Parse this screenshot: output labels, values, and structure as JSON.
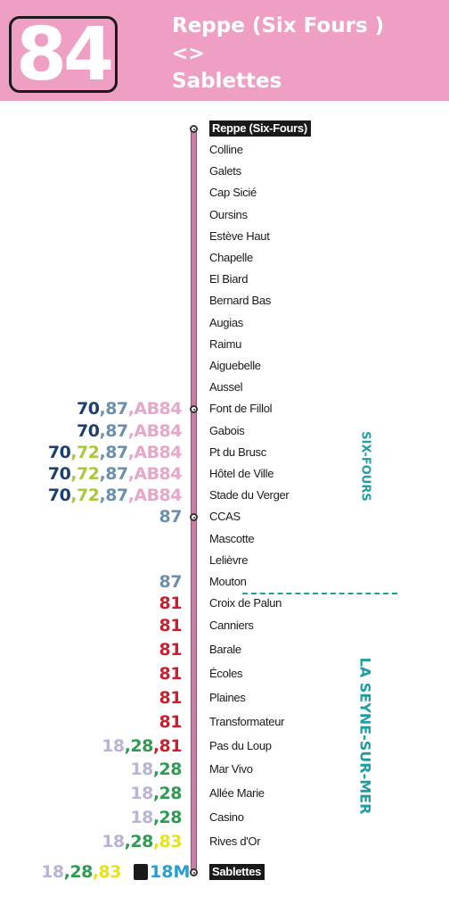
{
  "header": {
    "route_number": "84",
    "from": "Reppe (Six Fours )",
    "separator": "<>",
    "to": "Sablettes",
    "background": "#ef9fc3"
  },
  "line_color": "#c77fa2",
  "line_colors": {
    "70": "#1c3f6e",
    "72": "#a8c83a",
    "87": "#6d8fae",
    "AB84": "#e6a7c9",
    "81": "#c8202f",
    "18": "#b7b4d6",
    "28": "#2f9b52",
    "83": "#e8e21c",
    "18M": "#2a9dd0"
  },
  "communes": [
    "SIX-FOURS",
    "LA SEYNE-SUR-MER"
  ],
  "ferry": {
    "icon": "ferry-icon",
    "label": "18M"
  },
  "stops": [
    {
      "name": "Reppe (Six-Fours)",
      "terminus": true,
      "dot": true,
      "connections": []
    },
    {
      "name": "Colline",
      "connections": []
    },
    {
      "name": "Galets",
      "connections": []
    },
    {
      "name": "Cap Sicié",
      "connections": []
    },
    {
      "name": "Oursins",
      "connections": []
    },
    {
      "name": "Estève Haut",
      "connections": []
    },
    {
      "name": "Chapelle",
      "connections": []
    },
    {
      "name": "El Biard",
      "connections": []
    },
    {
      "name": "Bernard Bas",
      "connections": []
    },
    {
      "name": "Augias",
      "connections": []
    },
    {
      "name": "Raimu",
      "connections": []
    },
    {
      "name": "Aiguebelle",
      "connections": []
    },
    {
      "name": "Aussel",
      "connections": []
    },
    {
      "name": "Font de Fillol",
      "dot": true,
      "connections": [
        "70",
        "87",
        "AB84"
      ]
    },
    {
      "name": "Gabois",
      "connections": [
        "70",
        "87",
        "AB84"
      ]
    },
    {
      "name": "Pt du Brusc",
      "connections": [
        "70",
        "72",
        "87",
        "AB84"
      ]
    },
    {
      "name": "Hôtel de Ville",
      "connections": [
        "70",
        "72",
        "87",
        "AB84"
      ]
    },
    {
      "name": "Stade du Verger",
      "connections": [
        "70",
        "72",
        "87",
        "AB84"
      ]
    },
    {
      "name": "CCAS",
      "dot": true,
      "connections": [
        "87"
      ]
    },
    {
      "name": "Mascotte",
      "connections": []
    },
    {
      "name": "Lelièvre",
      "connections": []
    },
    {
      "name": "Mouton",
      "connections": [
        "87"
      ]
    },
    {
      "name": "Croix de Palun",
      "connections": [
        "81"
      ]
    },
    {
      "name": "Canniers",
      "connections": [
        "81"
      ]
    },
    {
      "name": "Barale",
      "connections": [
        "81"
      ]
    },
    {
      "name": "Écoles",
      "connections": [
        "81"
      ]
    },
    {
      "name": "Plaines",
      "connections": [
        "81"
      ]
    },
    {
      "name": "Transformateur",
      "connections": [
        "81"
      ]
    },
    {
      "name": "Pas du Loup",
      "connections": [
        "18",
        "28",
        "81"
      ]
    },
    {
      "name": "Mar Vivo",
      "connections": [
        "18",
        "28"
      ]
    },
    {
      "name": "Allée Marie",
      "connections": [
        "18",
        "28"
      ]
    },
    {
      "name": "Casino",
      "connections": [
        "18",
        "28"
      ]
    },
    {
      "name": "Rives d'Or",
      "connections": [
        "18",
        "28",
        "83"
      ]
    },
    {
      "name": "Sablettes",
      "terminus": true,
      "dot": true,
      "connections": [
        "18",
        "28",
        "83"
      ]
    }
  ]
}
